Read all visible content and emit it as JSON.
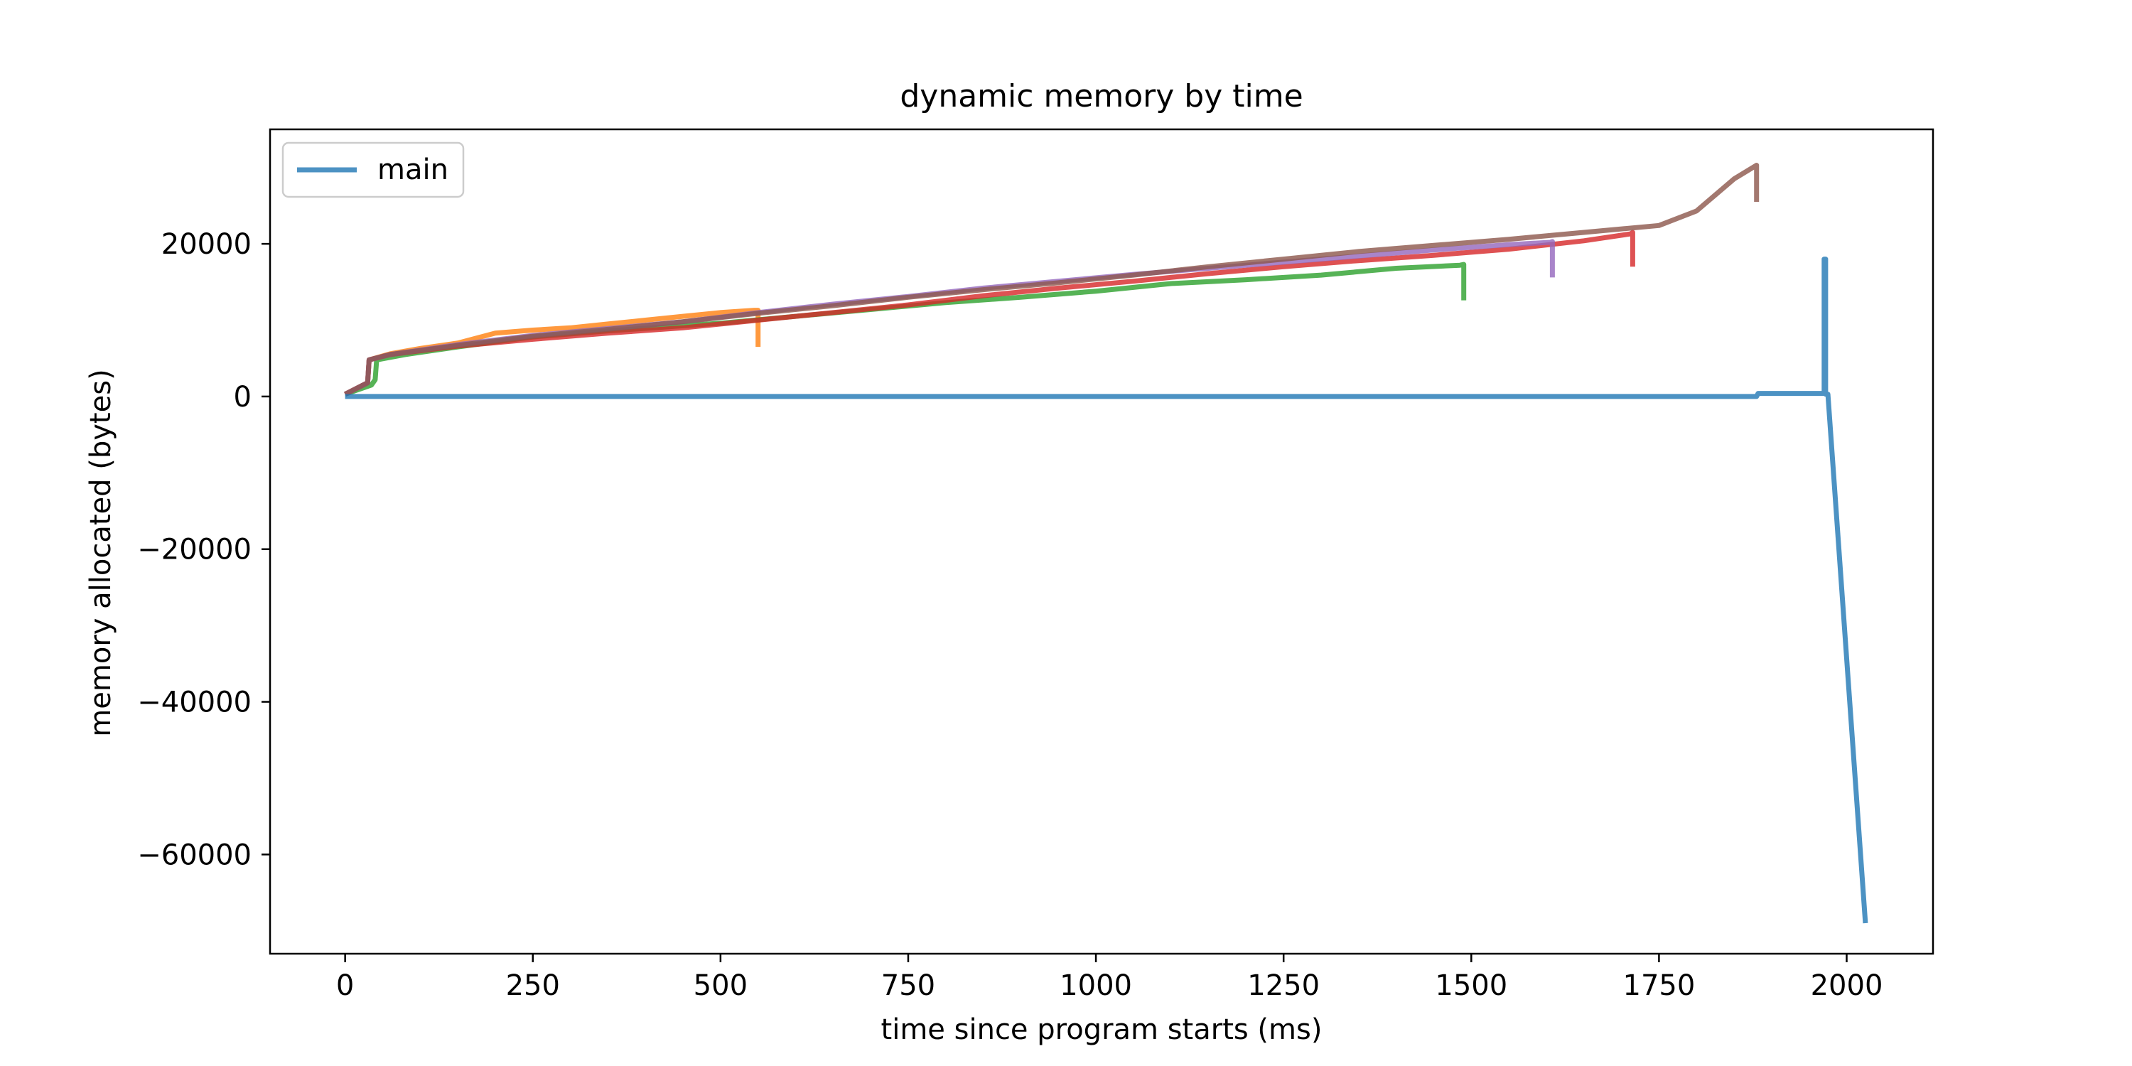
{
  "chart_data": {
    "type": "line",
    "title": "dynamic memory by time",
    "xlabel": "time since program starts (ms)",
    "ylabel": "memory allocated (bytes)",
    "xlim": [
      -100,
      2115
    ],
    "ylim": [
      -73000,
      35000
    ],
    "xticks": [
      0,
      250,
      500,
      750,
      1000,
      1250,
      1500,
      1750,
      2000
    ],
    "yticks": [
      -60000,
      -40000,
      -20000,
      0,
      20000
    ],
    "xtick_labels": [
      "0",
      "250",
      "500",
      "750",
      "1000",
      "1250",
      "1500",
      "1750",
      "2000"
    ],
    "ytick_labels": [
      "−60000",
      "−40000",
      "−20000",
      "0",
      "20000"
    ],
    "grid": false,
    "legend_position": "top-left",
    "series": [
      {
        "color": "#ff7f0e",
        "points": [
          [
            0,
            300
          ],
          [
            30,
            1800
          ],
          [
            32,
            4800
          ],
          [
            60,
            5600
          ],
          [
            100,
            6300
          ],
          [
            150,
            7000
          ],
          [
            200,
            8300
          ],
          [
            250,
            8700
          ],
          [
            300,
            9000
          ],
          [
            350,
            9500
          ],
          [
            400,
            10000
          ],
          [
            450,
            10500
          ],
          [
            500,
            11000
          ],
          [
            545,
            11300
          ],
          [
            550,
            11300
          ],
          [
            550,
            6500
          ]
        ]
      },
      {
        "color": "#2ca02c",
        "points": [
          [
            0,
            300
          ],
          [
            35,
            1500
          ],
          [
            40,
            2200
          ],
          [
            42,
            4800
          ],
          [
            80,
            5500
          ],
          [
            150,
            6500
          ],
          [
            250,
            7800
          ],
          [
            350,
            8600
          ],
          [
            500,
            9600
          ],
          [
            600,
            10500
          ],
          [
            700,
            11400
          ],
          [
            800,
            12300
          ],
          [
            900,
            13000
          ],
          [
            1000,
            13800
          ],
          [
            1100,
            14800
          ],
          [
            1200,
            15300
          ],
          [
            1300,
            15900
          ],
          [
            1400,
            16800
          ],
          [
            1485,
            17200
          ],
          [
            1490,
            17300
          ],
          [
            1490,
            12600
          ]
        ]
      },
      {
        "color": "#d62728",
        "points": [
          [
            0,
            300
          ],
          [
            30,
            1800
          ],
          [
            32,
            4800
          ],
          [
            60,
            5500
          ],
          [
            150,
            6600
          ],
          [
            250,
            7500
          ],
          [
            350,
            8300
          ],
          [
            450,
            9000
          ],
          [
            550,
            10000
          ],
          [
            650,
            11000
          ],
          [
            750,
            12000
          ],
          [
            850,
            13200
          ],
          [
            950,
            14200
          ],
          [
            1050,
            15100
          ],
          [
            1150,
            16100
          ],
          [
            1250,
            17000
          ],
          [
            1350,
            17800
          ],
          [
            1450,
            18500
          ],
          [
            1550,
            19300
          ],
          [
            1650,
            20400
          ],
          [
            1712,
            21300
          ],
          [
            1715,
            21500
          ],
          [
            1715,
            17000
          ]
        ]
      },
      {
        "color": "#9467bd",
        "points": [
          [
            0,
            300
          ],
          [
            30,
            1800
          ],
          [
            32,
            4800
          ],
          [
            60,
            5500
          ],
          [
            150,
            6800
          ],
          [
            250,
            8000
          ],
          [
            350,
            8900
          ],
          [
            450,
            9800
          ],
          [
            550,
            11000
          ],
          [
            650,
            12100
          ],
          [
            750,
            13100
          ],
          [
            850,
            14200
          ],
          [
            950,
            15100
          ],
          [
            1050,
            16000
          ],
          [
            1150,
            16800
          ],
          [
            1250,
            17600
          ],
          [
            1350,
            18400
          ],
          [
            1450,
            19200
          ],
          [
            1550,
            19900
          ],
          [
            1605,
            20200
          ],
          [
            1608,
            20300
          ],
          [
            1608,
            15600
          ]
        ]
      },
      {
        "color": "#8c564b",
        "points": [
          [
            0,
            300
          ],
          [
            30,
            1800
          ],
          [
            32,
            4800
          ],
          [
            60,
            5500
          ],
          [
            150,
            6700
          ],
          [
            250,
            7900
          ],
          [
            350,
            8800
          ],
          [
            450,
            9800
          ],
          [
            550,
            10900
          ],
          [
            650,
            11900
          ],
          [
            750,
            13000
          ],
          [
            850,
            14000
          ],
          [
            950,
            14900
          ],
          [
            1050,
            15900
          ],
          [
            1150,
            17000
          ],
          [
            1250,
            18000
          ],
          [
            1350,
            19000
          ],
          [
            1450,
            19800
          ],
          [
            1550,
            20600
          ],
          [
            1650,
            21500
          ],
          [
            1750,
            22400
          ],
          [
            1800,
            24300
          ],
          [
            1850,
            28500
          ],
          [
            1880,
            30300
          ],
          [
            1880,
            25500
          ]
        ]
      },
      {
        "name": "main",
        "color": "#1f77b4",
        "points": [
          [
            0,
            0
          ],
          [
            1880,
            0
          ],
          [
            1882,
            400
          ],
          [
            1965,
            400
          ],
          [
            1970,
            400
          ],
          [
            1970,
            18000
          ],
          [
            1972,
            18000
          ],
          [
            1972,
            300
          ],
          [
            1975,
            300
          ],
          [
            2025,
            -69000
          ]
        ]
      }
    ]
  }
}
